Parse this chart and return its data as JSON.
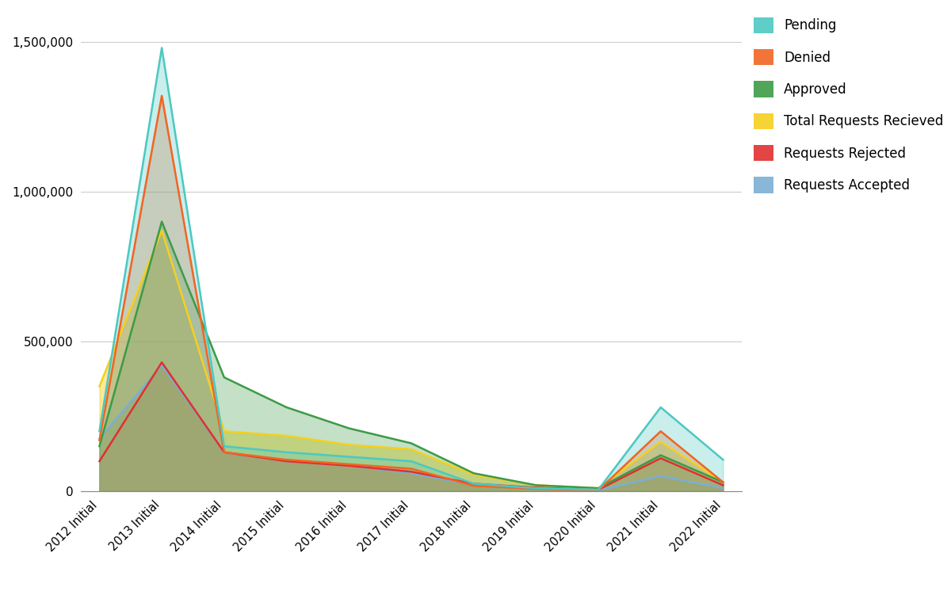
{
  "categories": [
    "2012 Initial",
    "2013 Initial",
    "2014 Initial",
    "2015 Initial",
    "2016 Initial",
    "2017 Initial",
    "2018 Initial",
    "2019 Initial",
    "2020 Initial",
    "2021 Initial",
    "2022 Initial"
  ],
  "series": {
    "Requests Accepted": [
      175000,
      420000,
      130000,
      100000,
      85000,
      60000,
      20000,
      8000,
      3000,
      50000,
      10000
    ],
    "Requests Rejected": [
      100000,
      430000,
      130000,
      100000,
      85000,
      65000,
      25000,
      12000,
      5000,
      110000,
      20000
    ],
    "Total Requests Recieved": [
      350000,
      870000,
      200000,
      185000,
      155000,
      140000,
      55000,
      20000,
      10000,
      165000,
      30000
    ],
    "Approved": [
      150000,
      900000,
      380000,
      280000,
      210000,
      160000,
      60000,
      20000,
      10000,
      120000,
      30000
    ],
    "Denied": [
      170000,
      1320000,
      130000,
      105000,
      90000,
      75000,
      18000,
      8000,
      3000,
      200000,
      30000
    ],
    "Pending": [
      200000,
      1480000,
      150000,
      130000,
      115000,
      100000,
      25000,
      10000,
      5000,
      280000,
      105000
    ]
  },
  "colors": {
    "Pending": "#4dc8c2",
    "Denied": "#f26522",
    "Approved": "#3d9b47",
    "Total Requests Recieved": "#f5d020",
    "Requests Rejected": "#e03030",
    "Requests Accepted": "#7bafd4"
  },
  "fill_alphas": {
    "Pending": 0.3,
    "Denied": 0.3,
    "Approved": 0.3,
    "Total Requests Recieved": 0.45,
    "Requests Rejected": 0.3,
    "Requests Accepted": 0.45
  },
  "draw_order": [
    "Requests Accepted",
    "Requests Rejected",
    "Total Requests Recieved",
    "Approved",
    "Denied",
    "Pending"
  ],
  "ylim": [
    0,
    1600000
  ],
  "yticks": [
    0,
    500000,
    1000000,
    1500000
  ],
  "ytick_labels": [
    "0",
    "500,000",
    "1,000,000",
    "1,500,000"
  ],
  "background_color": "#ffffff",
  "grid_color": "#cccccc",
  "legend_order": [
    "Pending",
    "Denied",
    "Approved",
    "Total Requests Recieved",
    "Requests Rejected",
    "Requests Accepted"
  ]
}
